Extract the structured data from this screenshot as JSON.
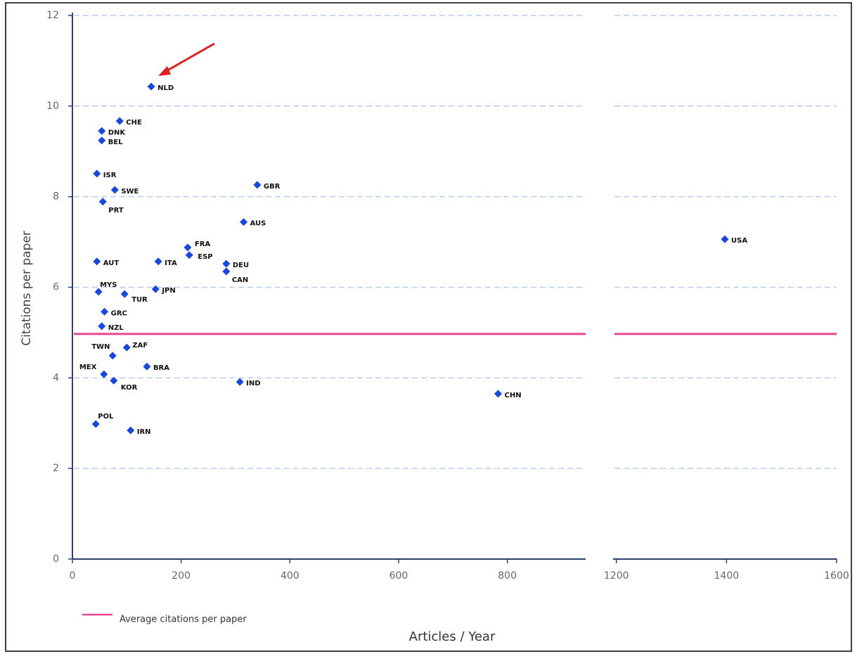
{
  "chart_data": {
    "type": "scatter",
    "x_label": "Articles / Year",
    "y_label": "Citations per paper",
    "labels": [
      "NLD",
      "CHE",
      "DNK",
      "BEL",
      "ISR",
      "SWE",
      "PRT",
      "GBR",
      "AUS",
      "FRA",
      "ESP",
      "DEU",
      "CAN",
      "AUT",
      "ITA",
      "MYS",
      "TUR",
      "JPN",
      "GRC",
      "NZL",
      "TWN",
      "ZAF",
      "BRA",
      "MEX",
      "KOR",
      "IND",
      "CHN",
      "POL",
      "IRN",
      "USA"
    ],
    "x": [
      145,
      87,
      54,
      54,
      45,
      78,
      56,
      340,
      315,
      212,
      215,
      283,
      283,
      45,
      158,
      48,
      96,
      153,
      59,
      54,
      74,
      100,
      137,
      58,
      76,
      308,
      783,
      43,
      107,
      1397
    ],
    "y": [
      10.43,
      9.67,
      9.45,
      9.24,
      8.51,
      8.15,
      7.89,
      8.26,
      7.44,
      6.88,
      6.71,
      6.52,
      6.35,
      6.57,
      6.57,
      5.9,
      5.85,
      5.96,
      5.46,
      5.14,
      4.49,
      4.67,
      4.25,
      4.08,
      3.94,
      3.91,
      3.65,
      2.98,
      2.84,
      7.06
    ],
    "color": "#1447e6",
    "reference_line": {
      "name": "Average citations per paper",
      "value": 4.97,
      "color": "#e8478c"
    },
    "x_segments": [
      {
        "xlim": [
          0,
          944
        ],
        "xticks": [
          0,
          200,
          400,
          600,
          800
        ]
      },
      {
        "xlim": [
          1194,
          1600
        ],
        "xticks": [
          1200,
          1400,
          1600
        ]
      }
    ],
    "ylim": [
      0,
      12
    ],
    "yticks": [
      0,
      2,
      4,
      6,
      8,
      10,
      12
    ],
    "grid": true
  }
}
